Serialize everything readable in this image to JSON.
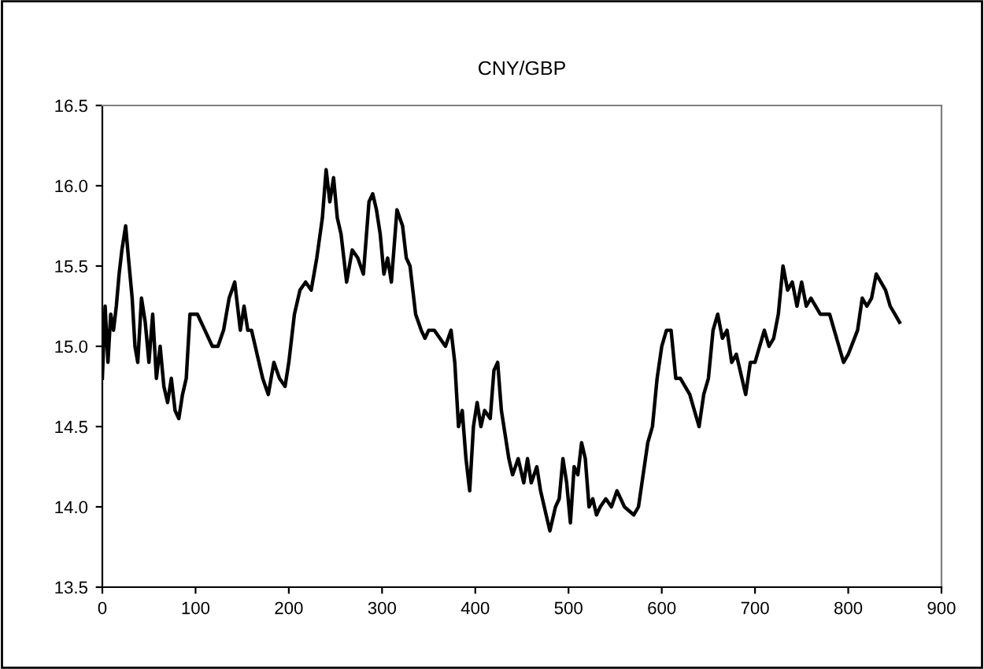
{
  "chart_data": {
    "type": "line",
    "title": "CNY/GBP",
    "x": [
      0,
      3,
      6,
      9,
      12,
      15,
      18,
      21,
      25,
      28,
      32,
      35,
      38,
      42,
      46,
      50,
      54,
      58,
      62,
      66,
      70,
      74,
      78,
      82,
      86,
      90,
      94,
      98,
      102,
      110,
      118,
      124,
      130,
      136,
      142,
      148,
      152,
      156,
      160,
      166,
      172,
      178,
      184,
      190,
      196,
      200,
      206,
      212,
      218,
      224,
      230,
      236,
      240,
      244,
      248,
      252,
      256,
      262,
      268,
      274,
      280,
      286,
      290,
      294,
      298,
      302,
      306,
      310,
      316,
      322,
      326,
      330,
      336,
      342,
      346,
      350,
      356,
      362,
      368,
      374,
      378,
      382,
      386,
      390,
      394,
      398,
      402,
      406,
      410,
      416,
      420,
      424,
      428,
      432,
      436,
      440,
      446,
      452,
      456,
      460,
      466,
      470,
      476,
      480,
      486,
      490,
      494,
      498,
      502,
      506,
      510,
      514,
      518,
      522,
      526,
      530,
      534,
      540,
      546,
      552,
      560,
      570,
      575,
      580,
      585,
      590,
      595,
      600,
      605,
      610,
      615,
      620,
      630,
      640,
      645,
      650,
      655,
      660,
      665,
      670,
      675,
      680,
      690,
      695,
      700,
      710,
      715,
      720,
      725,
      730,
      735,
      740,
      745,
      750,
      755,
      760,
      770,
      780,
      785,
      790,
      795,
      800,
      810,
      815,
      820,
      825,
      830,
      835,
      840,
      845,
      850,
      855
    ],
    "values": [
      14.8,
      15.25,
      14.9,
      15.2,
      15.1,
      15.25,
      15.45,
      15.6,
      15.75,
      15.55,
      15.3,
      15.0,
      14.9,
      15.3,
      15.15,
      14.9,
      15.2,
      14.8,
      15.0,
      14.75,
      14.65,
      14.8,
      14.6,
      14.55,
      14.7,
      14.8,
      15.2,
      15.2,
      15.2,
      15.1,
      15.0,
      15.0,
      15.1,
      15.3,
      15.4,
      15.1,
      15.25,
      15.1,
      15.1,
      14.95,
      14.8,
      14.7,
      14.9,
      14.8,
      14.75,
      14.9,
      15.2,
      15.35,
      15.4,
      15.35,
      15.55,
      15.8,
      16.1,
      15.9,
      16.05,
      15.8,
      15.7,
      15.4,
      15.6,
      15.55,
      15.45,
      15.9,
      15.95,
      15.85,
      15.7,
      15.45,
      15.55,
      15.4,
      15.85,
      15.75,
      15.55,
      15.5,
      15.2,
      15.1,
      15.05,
      15.1,
      15.1,
      15.05,
      15.0,
      15.1,
      14.9,
      14.5,
      14.6,
      14.3,
      14.1,
      14.5,
      14.65,
      14.5,
      14.6,
      14.55,
      14.85,
      14.9,
      14.6,
      14.45,
      14.3,
      14.2,
      14.3,
      14.15,
      14.3,
      14.15,
      14.25,
      14.1,
      13.95,
      13.85,
      14.0,
      14.05,
      14.3,
      14.15,
      13.9,
      14.25,
      14.2,
      14.4,
      14.3,
      14.0,
      14.05,
      13.95,
      14.0,
      14.05,
      14.0,
      14.1,
      14.0,
      13.95,
      14.0,
      14.2,
      14.4,
      14.5,
      14.8,
      15.0,
      15.1,
      15.1,
      14.8,
      14.8,
      14.7,
      14.5,
      14.7,
      14.8,
      15.1,
      15.2,
      15.05,
      15.1,
      14.9,
      14.95,
      14.7,
      14.9,
      14.9,
      15.1,
      15.0,
      15.05,
      15.2,
      15.5,
      15.35,
      15.4,
      15.25,
      15.4,
      15.25,
      15.3,
      15.2,
      15.2,
      15.1,
      15.0,
      14.9,
      14.95,
      15.1,
      15.3,
      15.25,
      15.3,
      15.45,
      15.4,
      15.35,
      15.25,
      15.2,
      15.15
    ],
    "color": "#000000",
    "xlim": [
      0,
      900
    ],
    "xticks": [
      0,
      100,
      200,
      300,
      400,
      500,
      600,
      700,
      800,
      900
    ],
    "ylim": [
      13.5,
      16.5
    ],
    "yticks": [
      {
        "value": 13.5,
        "label": "13.5"
      },
      {
        "value": 14,
        "label": "14.0"
      },
      {
        "value": 14.5,
        "label": "14.5"
      },
      {
        "value": 15,
        "label": "15.0"
      },
      {
        "value": 15.5,
        "label": "15.5"
      },
      {
        "value": 16,
        "label": "16.0"
      },
      {
        "value": 16.5,
        "label": "16.5"
      }
    ],
    "grid": false,
    "marker": "none",
    "line_style": "solid"
  }
}
